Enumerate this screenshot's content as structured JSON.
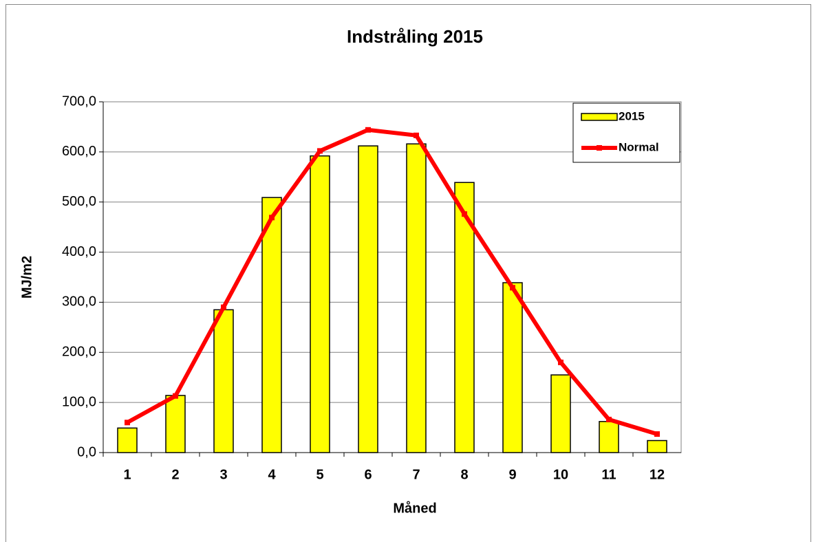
{
  "chart_data": {
    "type": "bar",
    "title": "Indstråling 2015",
    "x_label": "Måned",
    "y_label": "MJ/m2",
    "categories": [
      "1",
      "2",
      "3",
      "4",
      "5",
      "6",
      "7",
      "8",
      "9",
      "10",
      "11",
      "12"
    ],
    "series": [
      {
        "name": "2015",
        "type": "bar",
        "color": "#ffff00",
        "values": [
          49,
          114,
          285,
          509,
          592,
          612,
          616,
          539,
          339,
          155,
          62,
          24
        ]
      },
      {
        "name": "Normal",
        "type": "line",
        "color": "#ff0000",
        "values": [
          60,
          113,
          290,
          469,
          602,
          644,
          633,
          476,
          329,
          180,
          66,
          37
        ]
      }
    ],
    "ylim": [
      0,
      700
    ],
    "yticks": [
      {
        "value": 0,
        "label": "0,0"
      },
      {
        "value": 100,
        "label": "100,0"
      },
      {
        "value": 200,
        "label": "200,0"
      },
      {
        "value": 300,
        "label": "300,0"
      },
      {
        "value": 400,
        "label": "400,0"
      },
      {
        "value": 500,
        "label": "500,0"
      },
      {
        "value": 600,
        "label": "600,0"
      },
      {
        "value": 700,
        "label": "700,0"
      }
    ],
    "grid": true,
    "legend": "top-right"
  }
}
